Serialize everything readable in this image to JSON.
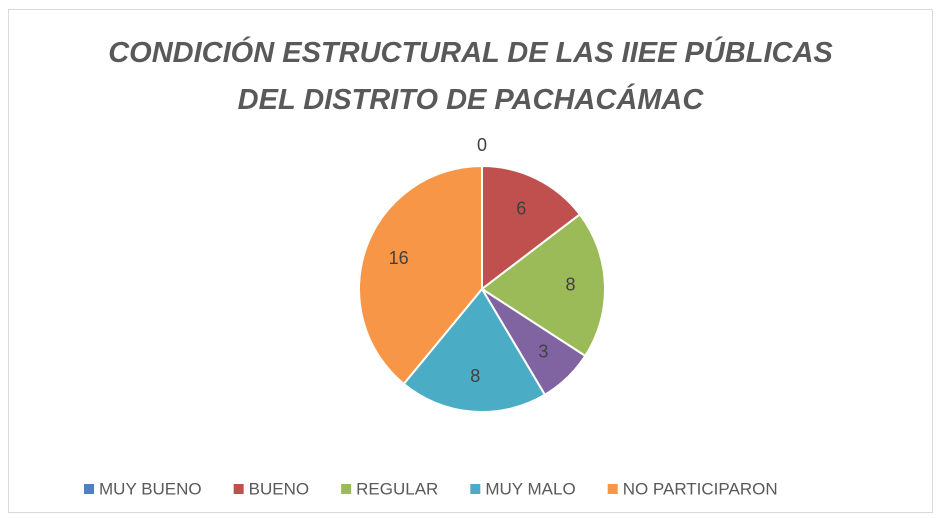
{
  "chart_data": {
    "type": "pie",
    "title": "CONDICIÓN ESTRUCTURAL DE LAS IIEE PÚBLICAS DEL DISTRITO DE PACHACÁMAC",
    "categories": [
      "MUY BUENO",
      "BUENO",
      "REGULAR",
      null,
      "MUY MALO",
      "NO PARTICIPARON"
    ],
    "values": [
      0,
      6,
      8,
      3,
      8,
      16
    ],
    "colors": [
      "#4f81bd",
      "#c0504d",
      "#9bbb59",
      "#8064a2",
      "#4bacc6",
      "#f79646"
    ],
    "legend": "bottom"
  }
}
